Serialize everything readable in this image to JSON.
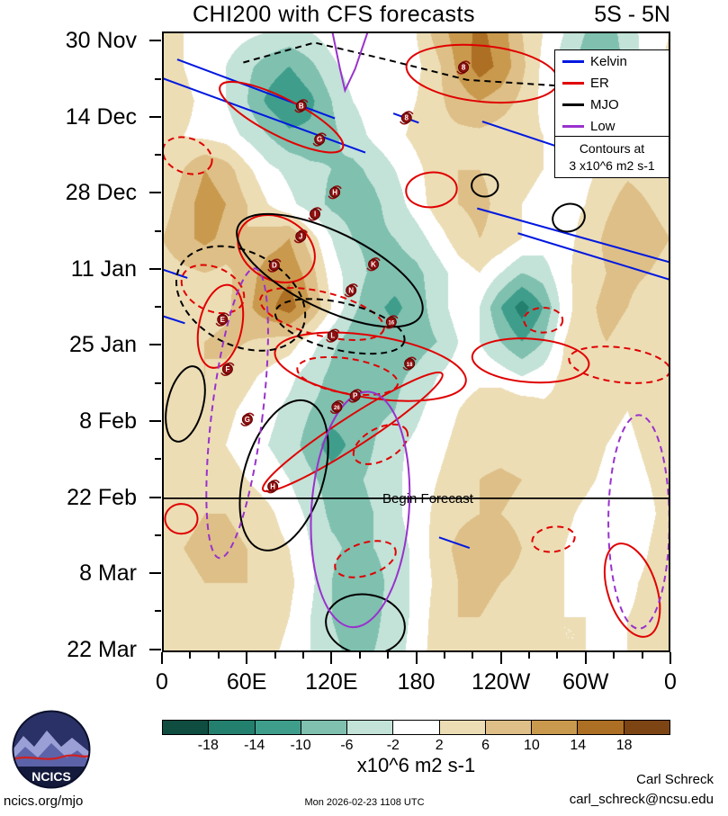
{
  "header": {
    "title": "CHI200 with CFS forecasts",
    "subtitle": "5S - 5N"
  },
  "legend": {
    "items": [
      {
        "label": "Kelvin",
        "series": "kelvin"
      },
      {
        "label": "ER",
        "series": "er"
      },
      {
        "label": "MJO",
        "series": "mjo"
      },
      {
        "label": "Low",
        "series": "low"
      }
    ],
    "contour_note_line1": "Contours at",
    "contour_note_line2": "3 x10^6 m2 s-1"
  },
  "colors": {
    "kelvin": "#0018e0",
    "er": "#e00000",
    "mjo": "#000000",
    "low": "#9932cc"
  },
  "annotations": {
    "begin_forecast": "Begin Forecast"
  },
  "footer": {
    "site": "ncics.org/mjo",
    "timestamp": "Mon 2026-02-23 1108 UTC",
    "author": "Carl Schreck",
    "email": "carl_schreck@ncsu.edu",
    "logo_text": "NCICS"
  },
  "chart_data": {
    "type": "heatmap",
    "title": "CHI200 with CFS forecasts",
    "latitude_band": "5S - 5N",
    "x_ticks": [
      "0",
      "60E",
      "120E",
      "180",
      "120W",
      "60W",
      "0"
    ],
    "y_ticks": [
      "30 Nov",
      "14 Dec",
      "28 Dec",
      "11 Jan",
      "25 Jan",
      "8 Feb",
      "22 Feb",
      "8 Mar",
      "22 Mar"
    ],
    "contour_interval_note": "Contours at 3 x10^6 m2 s-1",
    "begin_forecast_y_frac": 0.752,
    "colorbar": {
      "levels": [
        -18,
        -14,
        -10,
        -6,
        -2,
        2,
        6,
        10,
        14,
        18
      ],
      "colors": [
        "#0f4d41",
        "#237f6e",
        "#3f9e8b",
        "#7fc0af",
        "#c3e2d8",
        "#ffffff",
        "#ecddb5",
        "#debf87",
        "#c99a4e",
        "#ad6f24",
        "#7d4414"
      ],
      "units": "x10^6 m2 s-1"
    },
    "field": [
      [
        2,
        2,
        1,
        0,
        -1,
        -2,
        -3,
        -2,
        0,
        1,
        1,
        0,
        2,
        8,
        12,
        15,
        12,
        6,
        2,
        -2,
        -6,
        -8,
        -4,
        0,
        2
      ],
      [
        3,
        2,
        0,
        -2,
        -5,
        -8,
        -10,
        -7,
        -3,
        0,
        0,
        -1,
        1,
        5,
        11,
        16,
        13,
        7,
        1,
        -4,
        -8,
        -9,
        -5,
        0,
        3
      ],
      [
        4,
        3,
        1,
        -2,
        -6,
        -11,
        -14,
        -11,
        -6,
        -2,
        0,
        0,
        2,
        5,
        8,
        10,
        8,
        5,
        1,
        -3,
        -5,
        -4,
        -2,
        1,
        4
      ],
      [
        3,
        2,
        1,
        0,
        -3,
        -6,
        -9,
        -9,
        -7,
        -4,
        -1,
        1,
        3,
        5,
        5,
        5,
        4,
        3,
        2,
        0,
        -1,
        0,
        2,
        3,
        3
      ],
      [
        2,
        6,
        10,
        8,
        3,
        -1,
        -3,
        -5,
        -6,
        -7,
        -5,
        -2,
        1,
        4,
        6,
        6,
        5,
        3,
        2,
        1,
        1,
        3,
        5,
        4,
        2
      ],
      [
        4,
        8,
        12,
        10,
        6,
        2,
        -1,
        -4,
        -7,
        -8,
        -7,
        -4,
        0,
        4,
        6,
        7,
        5,
        2,
        1,
        1,
        2,
        5,
        8,
        6,
        4
      ],
      [
        6,
        9,
        11,
        9,
        6,
        8,
        10,
        4,
        -2,
        -6,
        -7,
        -6,
        -4,
        0,
        4,
        6,
        5,
        2,
        0,
        1,
        3,
        7,
        10,
        8,
        6
      ],
      [
        4,
        5,
        6,
        5,
        8,
        12,
        13,
        8,
        0,
        -4,
        -7,
        -8,
        -7,
        -4,
        0,
        2,
        -2,
        -6,
        -4,
        1,
        4,
        6,
        7,
        6,
        4
      ],
      [
        2,
        3,
        4,
        5,
        9,
        13,
        16,
        10,
        2,
        -5,
        -9,
        -11,
        -8,
        -4,
        0,
        -2,
        -10,
        -16,
        -10,
        0,
        5,
        7,
        6,
        4,
        2
      ],
      [
        3,
        4,
        6,
        7,
        6,
        5,
        4,
        0,
        -5,
        -8,
        -9,
        -8,
        -8,
        -6,
        -2,
        -2,
        -6,
        -10,
        -6,
        2,
        5,
        6,
        5,
        4,
        3
      ],
      [
        5,
        6,
        6,
        5,
        3,
        1,
        -1,
        -4,
        -7,
        -10,
        -9,
        -7,
        -5,
        -2,
        0,
        1,
        0,
        -2,
        0,
        3,
        4,
        4,
        4,
        5,
        5
      ],
      [
        6,
        6,
        5,
        3,
        1,
        -1,
        -3,
        -6,
        -8,
        -8,
        -7,
        -6,
        -3,
        0,
        2,
        4,
        6,
        5,
        3,
        3,
        4,
        3,
        2,
        4,
        6
      ],
      [
        5,
        5,
        4,
        2,
        0,
        -2,
        -4,
        -8,
        -12,
        -9,
        -6,
        -3,
        -1,
        1,
        3,
        4,
        4,
        3,
        3,
        4,
        4,
        2,
        1,
        3,
        5
      ],
      [
        4,
        5,
        5,
        4,
        2,
        0,
        -2,
        -5,
        -8,
        -7,
        -5,
        -3,
        0,
        2,
        4,
        6,
        7,
        6,
        5,
        4,
        3,
        1,
        0,
        2,
        4
      ],
      [
        4,
        5,
        6,
        6,
        5,
        3,
        0,
        -3,
        -7,
        -8,
        -6,
        -3,
        0,
        3,
        5,
        6,
        6,
        5,
        4,
        3,
        1,
        -1,
        -2,
        1,
        4
      ],
      [
        5,
        6,
        7,
        7,
        6,
        4,
        2,
        -2,
        -5,
        -7,
        -6,
        -4,
        -1,
        4,
        7,
        9,
        8,
        6,
        4,
        2,
        0,
        -2,
        -1,
        2,
        5
      ],
      [
        4,
        5,
        6,
        6,
        6,
        5,
        3,
        -1,
        -6,
        -10,
        -8,
        -4,
        -1,
        3,
        6,
        7,
        6,
        5,
        3,
        2,
        1,
        0,
        1,
        3,
        4
      ],
      [
        3,
        4,
        5,
        5,
        5,
        4,
        2,
        -2,
        -6,
        -8,
        -7,
        -4,
        -1,
        4,
        6,
        6,
        5,
        4,
        3,
        2,
        2,
        1,
        2,
        3,
        3
      ],
      [
        3,
        4,
        4,
        4,
        4,
        3,
        1,
        -2,
        -5,
        -7,
        -6,
        -4,
        0,
        4,
        5,
        5,
        4,
        3,
        3,
        2,
        2,
        2,
        2,
        3,
        3
      ]
    ],
    "markers": [
      {
        "label": "8",
        "x": 0.593,
        "y": 0.058
      },
      {
        "label": "B",
        "x": 0.274,
        "y": 0.12
      },
      {
        "label": "8",
        "x": 0.481,
        "y": 0.139
      },
      {
        "label": "G",
        "x": 0.31,
        "y": 0.174
      },
      {
        "label": "H",
        "x": 0.34,
        "y": 0.259
      },
      {
        "label": "I",
        "x": 0.301,
        "y": 0.294
      },
      {
        "label": "J",
        "x": 0.273,
        "y": 0.33
      },
      {
        "label": "D",
        "x": 0.221,
        "y": 0.377
      },
      {
        "label": "K",
        "x": 0.416,
        "y": 0.375
      },
      {
        "label": "N",
        "x": 0.372,
        "y": 0.417
      },
      {
        "label": "E",
        "x": 0.119,
        "y": 0.464
      },
      {
        "label": "16",
        "x": 0.451,
        "y": 0.468
      },
      {
        "label": "L",
        "x": 0.336,
        "y": 0.49
      },
      {
        "label": "F",
        "x": 0.129,
        "y": 0.544
      },
      {
        "label": "18",
        "x": 0.487,
        "y": 0.535
      },
      {
        "label": "P",
        "x": 0.38,
        "y": 0.587
      },
      {
        "label": "26",
        "x": 0.344,
        "y": 0.605
      },
      {
        "label": "G",
        "x": 0.168,
        "y": 0.625
      },
      {
        "label": "H",
        "x": 0.218,
        "y": 0.733
      }
    ],
    "overlays": [
      {
        "kind": "line",
        "series": "kelvin",
        "x1": 0.0,
        "y1": 0.075,
        "x2": 0.4,
        "y2": 0.195
      },
      {
        "kind": "line",
        "series": "kelvin",
        "x1": 0.03,
        "y1": 0.045,
        "x2": 0.34,
        "y2": 0.14
      },
      {
        "kind": "line",
        "series": "kelvin",
        "x1": 0.455,
        "y1": 0.132,
        "x2": 0.505,
        "y2": 0.147
      },
      {
        "kind": "line",
        "series": "kelvin",
        "x1": 0.63,
        "y1": 0.145,
        "x2": 0.795,
        "y2": 0.19
      },
      {
        "kind": "line",
        "series": "kelvin",
        "x1": 0.62,
        "y1": 0.285,
        "x2": 1.0,
        "y2": 0.372
      },
      {
        "kind": "line",
        "series": "kelvin",
        "x1": 0.7,
        "y1": 0.325,
        "x2": 1.0,
        "y2": 0.4
      },
      {
        "kind": "line",
        "series": "kelvin",
        "x1": 0.0,
        "y1": 0.383,
        "x2": 0.05,
        "y2": 0.397
      },
      {
        "kind": "line",
        "series": "kelvin",
        "x1": 0.0,
        "y1": 0.458,
        "x2": 0.045,
        "y2": 0.47
      },
      {
        "kind": "line",
        "series": "kelvin",
        "x1": 0.545,
        "y1": 0.815,
        "x2": 0.605,
        "y2": 0.832
      },
      {
        "kind": "line",
        "series": "kelvin",
        "x1": 0.885,
        "y1": 0.032,
        "x2": 1.0,
        "y2": 0.062
      },
      {
        "kind": "ellipse",
        "series": "er",
        "cx": 0.63,
        "cy": 0.068,
        "rx": 0.15,
        "ry": 0.045,
        "rot": 6
      },
      {
        "kind": "ellipse",
        "series": "er",
        "cx": 0.235,
        "cy": 0.138,
        "rx": 0.135,
        "ry": 0.03,
        "rot": 27
      },
      {
        "kind": "ellipse",
        "series": "er",
        "dash": true,
        "cx": 0.05,
        "cy": 0.2,
        "rx": 0.05,
        "ry": 0.028,
        "rot": 20
      },
      {
        "kind": "ellipse",
        "series": "er",
        "cx": 0.225,
        "cy": 0.35,
        "rx": 0.08,
        "ry": 0.05,
        "rot": 30
      },
      {
        "kind": "ellipse",
        "series": "er",
        "dash": true,
        "cx": 0.1,
        "cy": 0.415,
        "rx": 0.065,
        "ry": 0.035,
        "rot": 25
      },
      {
        "kind": "ellipse",
        "series": "er",
        "cx": 0.115,
        "cy": 0.475,
        "rx": 0.042,
        "ry": 0.068,
        "rot": 12
      },
      {
        "kind": "ellipse",
        "series": "er",
        "dash": true,
        "cx": 0.315,
        "cy": 0.455,
        "rx": 0.125,
        "ry": 0.035,
        "rot": 14
      },
      {
        "kind": "ellipse",
        "series": "er",
        "cx": 0.41,
        "cy": 0.54,
        "rx": 0.19,
        "ry": 0.05,
        "rot": 9
      },
      {
        "kind": "ellipse",
        "series": "er",
        "dash": true,
        "cx": 0.365,
        "cy": 0.555,
        "rx": 0.1,
        "ry": 0.028,
        "rot": 9
      },
      {
        "kind": "ellipse",
        "series": "er",
        "cx": 0.725,
        "cy": 0.53,
        "rx": 0.115,
        "ry": 0.035,
        "rot": 4
      },
      {
        "kind": "ellipse",
        "series": "er",
        "dash": true,
        "cx": 0.9,
        "cy": 0.537,
        "rx": 0.1,
        "ry": 0.028,
        "rot": 7
      },
      {
        "kind": "ellipse",
        "series": "er",
        "dash": true,
        "cx": 0.75,
        "cy": 0.465,
        "rx": 0.038,
        "ry": 0.02,
        "rot": 0
      },
      {
        "kind": "ellipse",
        "series": "er",
        "cx": 0.375,
        "cy": 0.645,
        "rx": 0.21,
        "ry": 0.024,
        "rot": -33
      },
      {
        "kind": "ellipse",
        "series": "er",
        "dash": true,
        "cx": 0.43,
        "cy": 0.665,
        "rx": 0.058,
        "ry": 0.026,
        "rot": -28
      },
      {
        "kind": "ellipse",
        "series": "er",
        "dash": true,
        "cx": 0.4,
        "cy": 0.85,
        "rx": 0.062,
        "ry": 0.026,
        "rot": -18
      },
      {
        "kind": "ellipse",
        "series": "er",
        "dash": true,
        "cx": 0.77,
        "cy": 0.818,
        "rx": 0.042,
        "ry": 0.02,
        "rot": -8
      },
      {
        "kind": "ellipse",
        "series": "er",
        "cx": 0.925,
        "cy": 0.9,
        "rx": 0.048,
        "ry": 0.078,
        "rot": -18
      },
      {
        "kind": "ellipse",
        "series": "er",
        "cx": 0.038,
        "cy": 0.785,
        "rx": 0.032,
        "ry": 0.024,
        "rot": 0
      },
      {
        "kind": "ellipse",
        "series": "er",
        "cx": 0.53,
        "cy": 0.255,
        "rx": 0.05,
        "ry": 0.028,
        "rot": -5
      },
      {
        "kind": "path",
        "series": "mjo",
        "dash": true,
        "d": [
          [
            0.16,
            0.05
          ],
          [
            0.3,
            0.018
          ],
          [
            0.44,
            0.045
          ],
          [
            0.6,
            0.078
          ],
          [
            0.79,
            0.088
          ],
          [
            1.0,
            0.045
          ]
        ]
      },
      {
        "kind": "ellipse",
        "series": "mjo",
        "cx": 0.33,
        "cy": 0.385,
        "rx": 0.2,
        "ry": 0.062,
        "rot": 26
      },
      {
        "kind": "ellipse",
        "series": "mjo",
        "dash": true,
        "cx": 0.155,
        "cy": 0.43,
        "rx": 0.135,
        "ry": 0.075,
        "rot": 28
      },
      {
        "kind": "ellipse",
        "series": "mjo",
        "dash": true,
        "cx": 0.35,
        "cy": 0.475,
        "rx": 0.13,
        "ry": 0.038,
        "rot": 13
      },
      {
        "kind": "ellipse",
        "series": "mjo",
        "cx": 0.046,
        "cy": 0.6,
        "rx": 0.035,
        "ry": 0.062,
        "rot": 14
      },
      {
        "kind": "ellipse",
        "series": "mjo",
        "cx": 0.24,
        "cy": 0.715,
        "rx": 0.078,
        "ry": 0.125,
        "rot": 17
      },
      {
        "kind": "ellipse",
        "series": "mjo",
        "cx": 0.4,
        "cy": 0.955,
        "rx": 0.078,
        "ry": 0.048,
        "rot": 8
      },
      {
        "kind": "ellipse",
        "series": "mjo",
        "cx": 0.8,
        "cy": 0.3,
        "rx": 0.032,
        "ry": 0.022,
        "rot": -18
      },
      {
        "kind": "ellipse",
        "series": "mjo",
        "cx": 0.635,
        "cy": 0.248,
        "rx": 0.026,
        "ry": 0.018,
        "rot": 0
      },
      {
        "kind": "path",
        "series": "low",
        "d": [
          [
            0.335,
            0.0
          ],
          [
            0.35,
            0.06
          ],
          [
            0.36,
            0.095
          ],
          [
            0.38,
            0.06
          ],
          [
            0.405,
            0.0
          ]
        ]
      },
      {
        "kind": "ellipse",
        "series": "low",
        "dash": true,
        "cx": 0.148,
        "cy": 0.615,
        "rx": 0.05,
        "ry": 0.235,
        "rot": 7
      },
      {
        "kind": "ellipse",
        "series": "low",
        "cx": 0.39,
        "cy": 0.77,
        "rx": 0.096,
        "ry": 0.19,
        "rot": 4
      },
      {
        "kind": "ellipse",
        "series": "low",
        "dash": true,
        "cx": 0.938,
        "cy": 0.79,
        "rx": 0.06,
        "ry": 0.172,
        "rot": 0
      }
    ]
  }
}
